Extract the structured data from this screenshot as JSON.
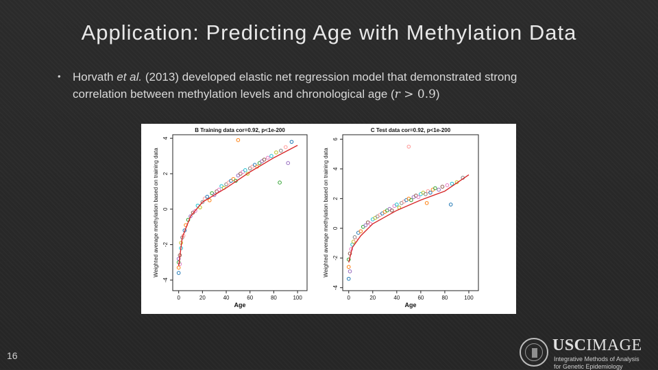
{
  "slide": {
    "title": "Application: Predicting Age with Methylation Data",
    "bullet": {
      "author": "Horvath",
      "etal": "et al.",
      "text1": " (2013) developed elastic net regression model that demonstrated strong",
      "text2": "correlation between methylation levels and chronological age (",
      "math_r": "r",
      "math_op": " > ",
      "math_val": "0.9",
      "close": ")"
    },
    "page_number": "16"
  },
  "logo": {
    "brand_a": "USC",
    "brand_b": "IMAGE",
    "line1": "Integrative Methods of Analysis",
    "line2": "for Genetic Epidemiology"
  },
  "colors": {
    "background": "#2a2a2a",
    "title_text": "#e8e8e8",
    "regression_line": "#d62728"
  },
  "chart_data": [
    {
      "type": "scatter",
      "title": "B Training data cor=0.92, p<1e-200",
      "xlabel": "Age",
      "ylabel": "Weighted average methylation based on training data",
      "xlim": [
        -5,
        108
      ],
      "ylim": [
        -4.6,
        4.2
      ],
      "xticks": [
        0,
        20,
        40,
        60,
        80,
        100
      ],
      "yticks": [
        -4,
        -2,
        0,
        2,
        4
      ],
      "trend": [
        [
          0,
          -3.2
        ],
        [
          3,
          -1.6
        ],
        [
          10,
          -0.4
        ],
        [
          20,
          0.4
        ],
        [
          40,
          1.2
        ],
        [
          60,
          2.1
        ],
        [
          80,
          2.9
        ],
        [
          100,
          3.6
        ]
      ],
      "points": [
        [
          0,
          -3.6
        ],
        [
          0,
          -3.3
        ],
        [
          0,
          -3.0
        ],
        [
          0,
          -2.8
        ],
        [
          1,
          -2.6
        ],
        [
          1,
          -3.1
        ],
        [
          2,
          -2.2
        ],
        [
          2,
          -1.9
        ],
        [
          3,
          -1.6
        ],
        [
          4,
          -1.5
        ],
        [
          5,
          -1.2
        ],
        [
          6,
          -0.9
        ],
        [
          8,
          -0.6
        ],
        [
          10,
          -0.4
        ],
        [
          12,
          -0.2
        ],
        [
          14,
          -0.1
        ],
        [
          16,
          0.2
        ],
        [
          18,
          0.1
        ],
        [
          20,
          0.4
        ],
        [
          22,
          0.6
        ],
        [
          24,
          0.7
        ],
        [
          26,
          0.5
        ],
        [
          28,
          0.9
        ],
        [
          30,
          0.8
        ],
        [
          32,
          1.0
        ],
        [
          34,
          1.1
        ],
        [
          36,
          1.3
        ],
        [
          38,
          1.2
        ],
        [
          40,
          1.4
        ],
        [
          42,
          1.5
        ],
        [
          44,
          1.6
        ],
        [
          46,
          1.7
        ],
        [
          48,
          1.6
        ],
        [
          50,
          1.9
        ],
        [
          52,
          2.0
        ],
        [
          54,
          2.1
        ],
        [
          56,
          2.2
        ],
        [
          58,
          2.0
        ],
        [
          60,
          2.3
        ],
        [
          62,
          2.4
        ],
        [
          64,
          2.5
        ],
        [
          66,
          2.4
        ],
        [
          68,
          2.6
        ],
        [
          70,
          2.7
        ],
        [
          72,
          2.8
        ],
        [
          75,
          2.9
        ],
        [
          78,
          3.0
        ],
        [
          82,
          3.2
        ],
        [
          86,
          3.3
        ],
        [
          90,
          3.5
        ],
        [
          95,
          3.8
        ],
        [
          50,
          3.9
        ],
        [
          85,
          1.5
        ],
        [
          92,
          2.6
        ]
      ]
    },
    {
      "type": "scatter",
      "title": "C Test data cor=0.92, p<1e-200",
      "xlabel": "Age",
      "ylabel": "Weighted average methylation based on training data",
      "xlim": [
        -5,
        108
      ],
      "ylim": [
        -4.2,
        6.3
      ],
      "xticks": [
        0,
        20,
        40,
        60,
        80,
        100
      ],
      "yticks": [
        -4,
        -2,
        0,
        2,
        4,
        6
      ],
      "trend": [
        [
          0,
          -2.3
        ],
        [
          3,
          -1.3
        ],
        [
          10,
          -0.5
        ],
        [
          20,
          0.3
        ],
        [
          40,
          1.2
        ],
        [
          60,
          1.9
        ],
        [
          80,
          2.5
        ],
        [
          100,
          3.6
        ]
      ],
      "points": [
        [
          0,
          -3.4
        ],
        [
          0,
          -2.6
        ],
        [
          0,
          -2.1
        ],
        [
          1,
          -2.9
        ],
        [
          1,
          -1.7
        ],
        [
          2,
          -1.4
        ],
        [
          3,
          -1.1
        ],
        [
          4,
          -0.9
        ],
        [
          5,
          -0.6
        ],
        [
          6,
          -0.8
        ],
        [
          8,
          -0.3
        ],
        [
          10,
          -0.2
        ],
        [
          12,
          0.1
        ],
        [
          14,
          0.2
        ],
        [
          16,
          0.4
        ],
        [
          18,
          0.3
        ],
        [
          20,
          0.6
        ],
        [
          22,
          0.7
        ],
        [
          24,
          0.8
        ],
        [
          26,
          0.9
        ],
        [
          28,
          1.0
        ],
        [
          30,
          1.1
        ],
        [
          32,
          1.2
        ],
        [
          34,
          1.3
        ],
        [
          36,
          1.2
        ],
        [
          38,
          1.5
        ],
        [
          40,
          1.6
        ],
        [
          42,
          1.4
        ],
        [
          44,
          1.7
        ],
        [
          46,
          1.8
        ],
        [
          48,
          1.9
        ],
        [
          50,
          2.0
        ],
        [
          52,
          1.9
        ],
        [
          54,
          2.1
        ],
        [
          56,
          2.2
        ],
        [
          58,
          2.1
        ],
        [
          60,
          2.3
        ],
        [
          62,
          2.4
        ],
        [
          64,
          2.3
        ],
        [
          66,
          2.5
        ],
        [
          68,
          2.4
        ],
        [
          70,
          2.6
        ],
        [
          72,
          2.7
        ],
        [
          75,
          2.6
        ],
        [
          78,
          2.8
        ],
        [
          82,
          2.9
        ],
        [
          86,
          3.0
        ],
        [
          90,
          3.1
        ],
        [
          95,
          3.4
        ],
        [
          50,
          5.5
        ],
        [
          85,
          1.6
        ],
        [
          65,
          1.7
        ]
      ]
    }
  ]
}
